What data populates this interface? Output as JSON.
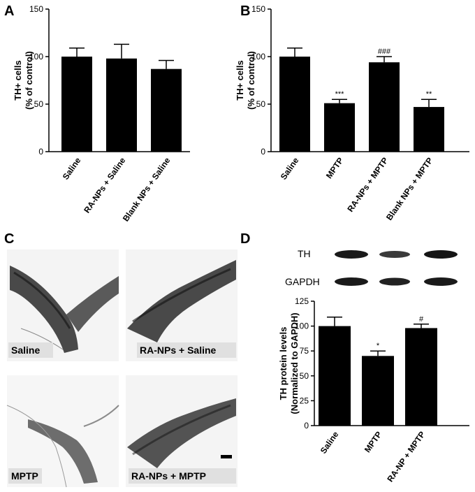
{
  "panels": {
    "A": {
      "letter": "A"
    },
    "B": {
      "letter": "B"
    },
    "C": {
      "letter": "C"
    },
    "D": {
      "letter": "D"
    }
  },
  "micrographs": {
    "labels": [
      "Saline",
      "RA-NPs + Saline",
      "MPTP",
      "RA-NPs + MPTP"
    ]
  },
  "western_blot": {
    "bands": [
      "TH",
      "GAPDH"
    ]
  },
  "chart_data": [
    {
      "panel": "A",
      "type": "bar",
      "ylabel": [
        "TH+ cells",
        "(% of control)"
      ],
      "ylim": [
        0,
        150
      ],
      "yticks": [
        0,
        50,
        100,
        150
      ],
      "categories": [
        "Saline",
        "RA-NPs + Saline",
        "Blank NPs + Saline"
      ],
      "values": [
        100,
        98,
        87
      ],
      "errors": [
        9,
        15,
        9
      ],
      "significance": [
        "",
        "",
        ""
      ]
    },
    {
      "panel": "B",
      "type": "bar",
      "ylabel": [
        "TH+ cells",
        "(% of control)"
      ],
      "ylim": [
        0,
        150
      ],
      "yticks": [
        0,
        50,
        100,
        150
      ],
      "categories": [
        "Saline",
        "MPTP",
        "RA-NPs + MPTP",
        "Blank NPs + MPTP"
      ],
      "values": [
        100,
        51,
        94,
        47
      ],
      "errors": [
        9,
        4,
        6,
        8
      ],
      "significance": [
        "",
        "***",
        "###",
        "**"
      ]
    },
    {
      "panel": "D",
      "type": "bar",
      "ylabel": [
        "TH protein levels",
        "(Normalized to GAPDH)"
      ],
      "ylim": [
        0,
        125
      ],
      "yticks": [
        0,
        25,
        50,
        75,
        100,
        125
      ],
      "categories": [
        "Saline",
        "MPTP",
        "RA-NP + MPTP"
      ],
      "values": [
        100,
        70,
        98
      ],
      "errors": [
        9,
        5,
        4
      ],
      "significance": [
        "",
        "*",
        "#"
      ]
    }
  ]
}
